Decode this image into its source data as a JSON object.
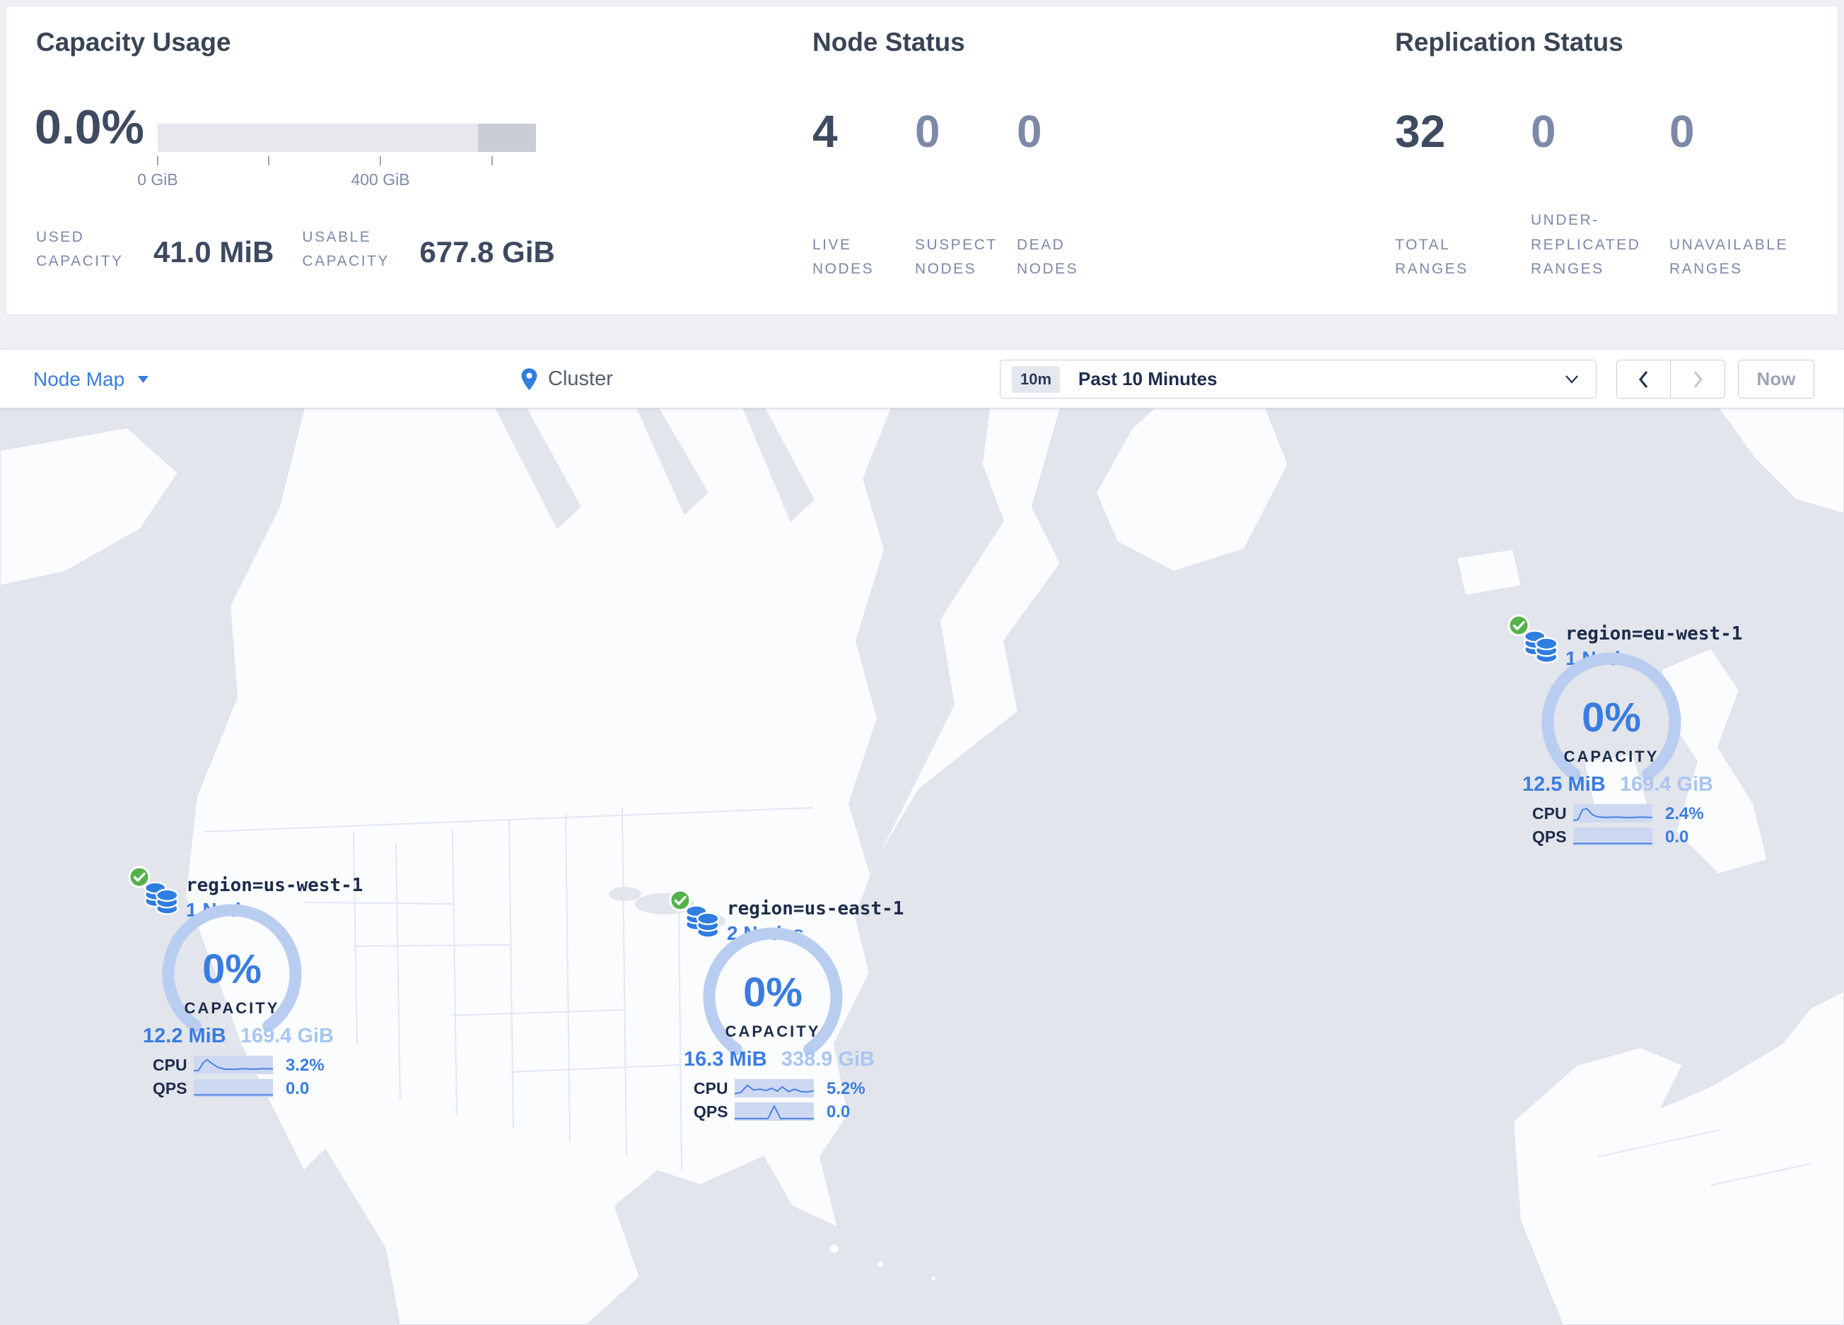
{
  "summary": {
    "capacity": {
      "title": "Capacity Usage",
      "percent": "0.0%",
      "tick_labels": [
        "0 GiB",
        "400 GiB"
      ],
      "stats": [
        {
          "label": "USED CAPACITY",
          "value": "41.0 MiB"
        },
        {
          "label": "USABLE CAPACITY",
          "value": "677.8 GiB"
        }
      ]
    },
    "nodes": {
      "title": "Node Status",
      "stats": [
        {
          "value": "4",
          "label": "LIVE NODES"
        },
        {
          "value": "0",
          "label": "SUSPECT NODES"
        },
        {
          "value": "0",
          "label": "DEAD NODES"
        }
      ]
    },
    "replication": {
      "title": "Replication Status",
      "stats": [
        {
          "value": "32",
          "label": "TOTAL RANGES"
        },
        {
          "value": "0",
          "label": "UNDER-REPLICATED RANGES"
        },
        {
          "value": "0",
          "label": "UNAVAILABLE RANGES"
        }
      ]
    }
  },
  "toolbar": {
    "view_selector": "Node Map",
    "breadcrumb": "Cluster",
    "time_badge": "10m",
    "time_range": "Past 10 Minutes",
    "now_button": "Now"
  },
  "regions": [
    {
      "name": "region=us-west-1",
      "nodes": "1 Node",
      "capacity_percent": "0%",
      "capacity_label": "CAPACITY",
      "used": "12.2 MiB",
      "usable": "169.4 GiB",
      "cpu_label": "CPU",
      "cpu_value": "3.2%",
      "qps_label": "QPS",
      "qps_value": "0.0",
      "cpu_points": [
        [
          0,
          0.82
        ],
        [
          0.06,
          0.8
        ],
        [
          0.12,
          0.38
        ],
        [
          0.17,
          0.22
        ],
        [
          0.23,
          0.42
        ],
        [
          0.3,
          0.62
        ],
        [
          0.38,
          0.72
        ],
        [
          0.5,
          0.74
        ],
        [
          0.62,
          0.7
        ],
        [
          0.75,
          0.73
        ],
        [
          0.88,
          0.7
        ],
        [
          1,
          0.72
        ]
      ],
      "qps_points": [
        [
          0,
          0.86
        ],
        [
          1,
          0.86
        ]
      ]
    },
    {
      "name": "region=us-east-1",
      "nodes": "2 Nodes",
      "capacity_percent": "0%",
      "capacity_label": "CAPACITY",
      "used": "16.3 MiB",
      "usable": "338.9 GiB",
      "cpu_label": "CPU",
      "cpu_value": "5.2%",
      "qps_label": "QPS",
      "qps_value": "0.0",
      "cpu_points": [
        [
          0,
          0.8
        ],
        [
          0.08,
          0.72
        ],
        [
          0.16,
          0.34
        ],
        [
          0.24,
          0.6
        ],
        [
          0.32,
          0.55
        ],
        [
          0.4,
          0.62
        ],
        [
          0.47,
          0.5
        ],
        [
          0.54,
          0.66
        ],
        [
          0.6,
          0.42
        ],
        [
          0.68,
          0.68
        ],
        [
          0.76,
          0.55
        ],
        [
          0.84,
          0.68
        ],
        [
          0.92,
          0.7
        ],
        [
          1,
          0.64
        ]
      ],
      "qps_points": [
        [
          0,
          0.88
        ],
        [
          0.42,
          0.88
        ],
        [
          0.5,
          0.2
        ],
        [
          0.58,
          0.88
        ],
        [
          1,
          0.88
        ]
      ]
    },
    {
      "name": "region=eu-west-1",
      "nodes": "1 Node",
      "capacity_percent": "0%",
      "capacity_label": "CAPACITY",
      "used": "12.5 MiB",
      "usable": "169.4 GiB",
      "cpu_label": "CPU",
      "cpu_value": "2.4%",
      "qps_label": "QPS",
      "qps_value": "0.0",
      "cpu_points": [
        [
          0,
          0.88
        ],
        [
          0.06,
          0.84
        ],
        [
          0.12,
          0.3
        ],
        [
          0.17,
          0.24
        ],
        [
          0.24,
          0.56
        ],
        [
          0.3,
          0.68
        ],
        [
          0.4,
          0.72
        ],
        [
          0.55,
          0.7
        ],
        [
          0.7,
          0.73
        ],
        [
          0.85,
          0.7
        ],
        [
          1,
          0.72
        ]
      ],
      "qps_points": [
        [
          0,
          0.87
        ],
        [
          1,
          0.87
        ]
      ]
    }
  ],
  "colors": {
    "accent_blue": "#3a7de1",
    "pale_blue": "#a8c6f2",
    "green_ok": "#54b24a",
    "navy": "#1c2c4a",
    "ocean": "#e3e5ec"
  }
}
